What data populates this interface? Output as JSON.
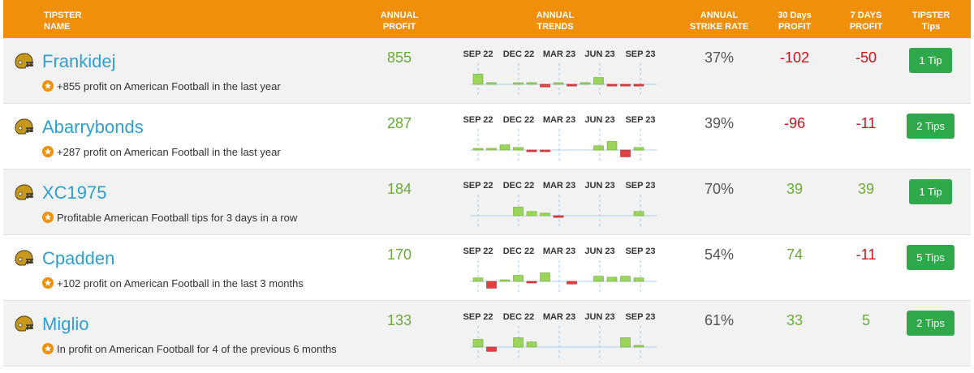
{
  "header": {
    "name_line1": "TIPSTER",
    "name_line2": "NAME",
    "profit_line1": "ANNUAL",
    "profit_line2": "PROFIT",
    "trends_line1": "ANNUAL",
    "trends_line2": "TRENDS",
    "strike_line1": "ANNUAL",
    "strike_line2": "STRIKE RATE",
    "p30_line1": "30 Days",
    "p30_line2": "PROFIT",
    "p7_line1": "7 DAYS",
    "p7_line2": "PROFIT",
    "tips_line1": "TIPSTER",
    "tips_line2": "Tips"
  },
  "trend_months": [
    "SEP 22",
    "DEC 22",
    "MAR 23",
    "JUN 23",
    "SEP 23"
  ],
  "colors": {
    "header": "#f0900a",
    "positive": "#6aaa3a",
    "negative": "#d0141e",
    "name": "#2e9fd0",
    "button": "#2ea84a",
    "bar_pos": "#9bd45a",
    "bar_neg": "#e04040",
    "helmet": "#c8981e"
  },
  "rows": [
    {
      "name": "Frankidej",
      "achievement": "+855 profit on American Football in the last year",
      "annual_profit": "855",
      "trend": [
        12,
        2,
        0,
        1,
        2,
        -3,
        1,
        -2,
        2,
        8,
        -2,
        -2,
        -2
      ],
      "strike_rate": "37%",
      "profit_30": "-102",
      "profit_7": "-50",
      "tips": "1 Tip"
    },
    {
      "name": "Abarrybonds",
      "achievement": "+287 profit on American Football in the last year",
      "annual_profit": "287",
      "trend": [
        1,
        2,
        6,
        3,
        -2,
        -2,
        0,
        0,
        0,
        5,
        10,
        -8,
        3
      ],
      "strike_rate": "39%",
      "profit_30": "-96",
      "profit_7": "-11",
      "tips": "2 Tips"
    },
    {
      "name": "XC1975",
      "achievement": "Profitable American Football tips for 3 days in a row",
      "annual_profit": "184",
      "trend": [
        0,
        0,
        0,
        10,
        5,
        3,
        -2,
        0,
        0,
        0,
        0,
        0,
        5
      ],
      "strike_rate": "70%",
      "profit_30": "39",
      "profit_7": "39",
      "tips": "1 Tip"
    },
    {
      "name": "Cpadden",
      "achievement": "+102 profit on American Football in the last 3 months",
      "annual_profit": "170",
      "trend": [
        4,
        -8,
        1,
        7,
        -1,
        10,
        0,
        -3,
        0,
        6,
        5,
        6,
        4
      ],
      "strike_rate": "54%",
      "profit_30": "74",
      "profit_7": "-11",
      "tips": "5 Tips"
    },
    {
      "name": "Miglio",
      "achievement": "In profit on American Football for 4 of the previous 6 months",
      "annual_profit": "133",
      "trend": [
        9,
        -5,
        0,
        11,
        6,
        0,
        0,
        0,
        0,
        0,
        0,
        11,
        2
      ],
      "strike_rate": "61%",
      "profit_30": "33",
      "profit_7": "5",
      "tips": "2 Tips"
    }
  ],
  "icons": {
    "sport": "american-football-helmet-icon",
    "achievement": "star-badge-icon"
  }
}
